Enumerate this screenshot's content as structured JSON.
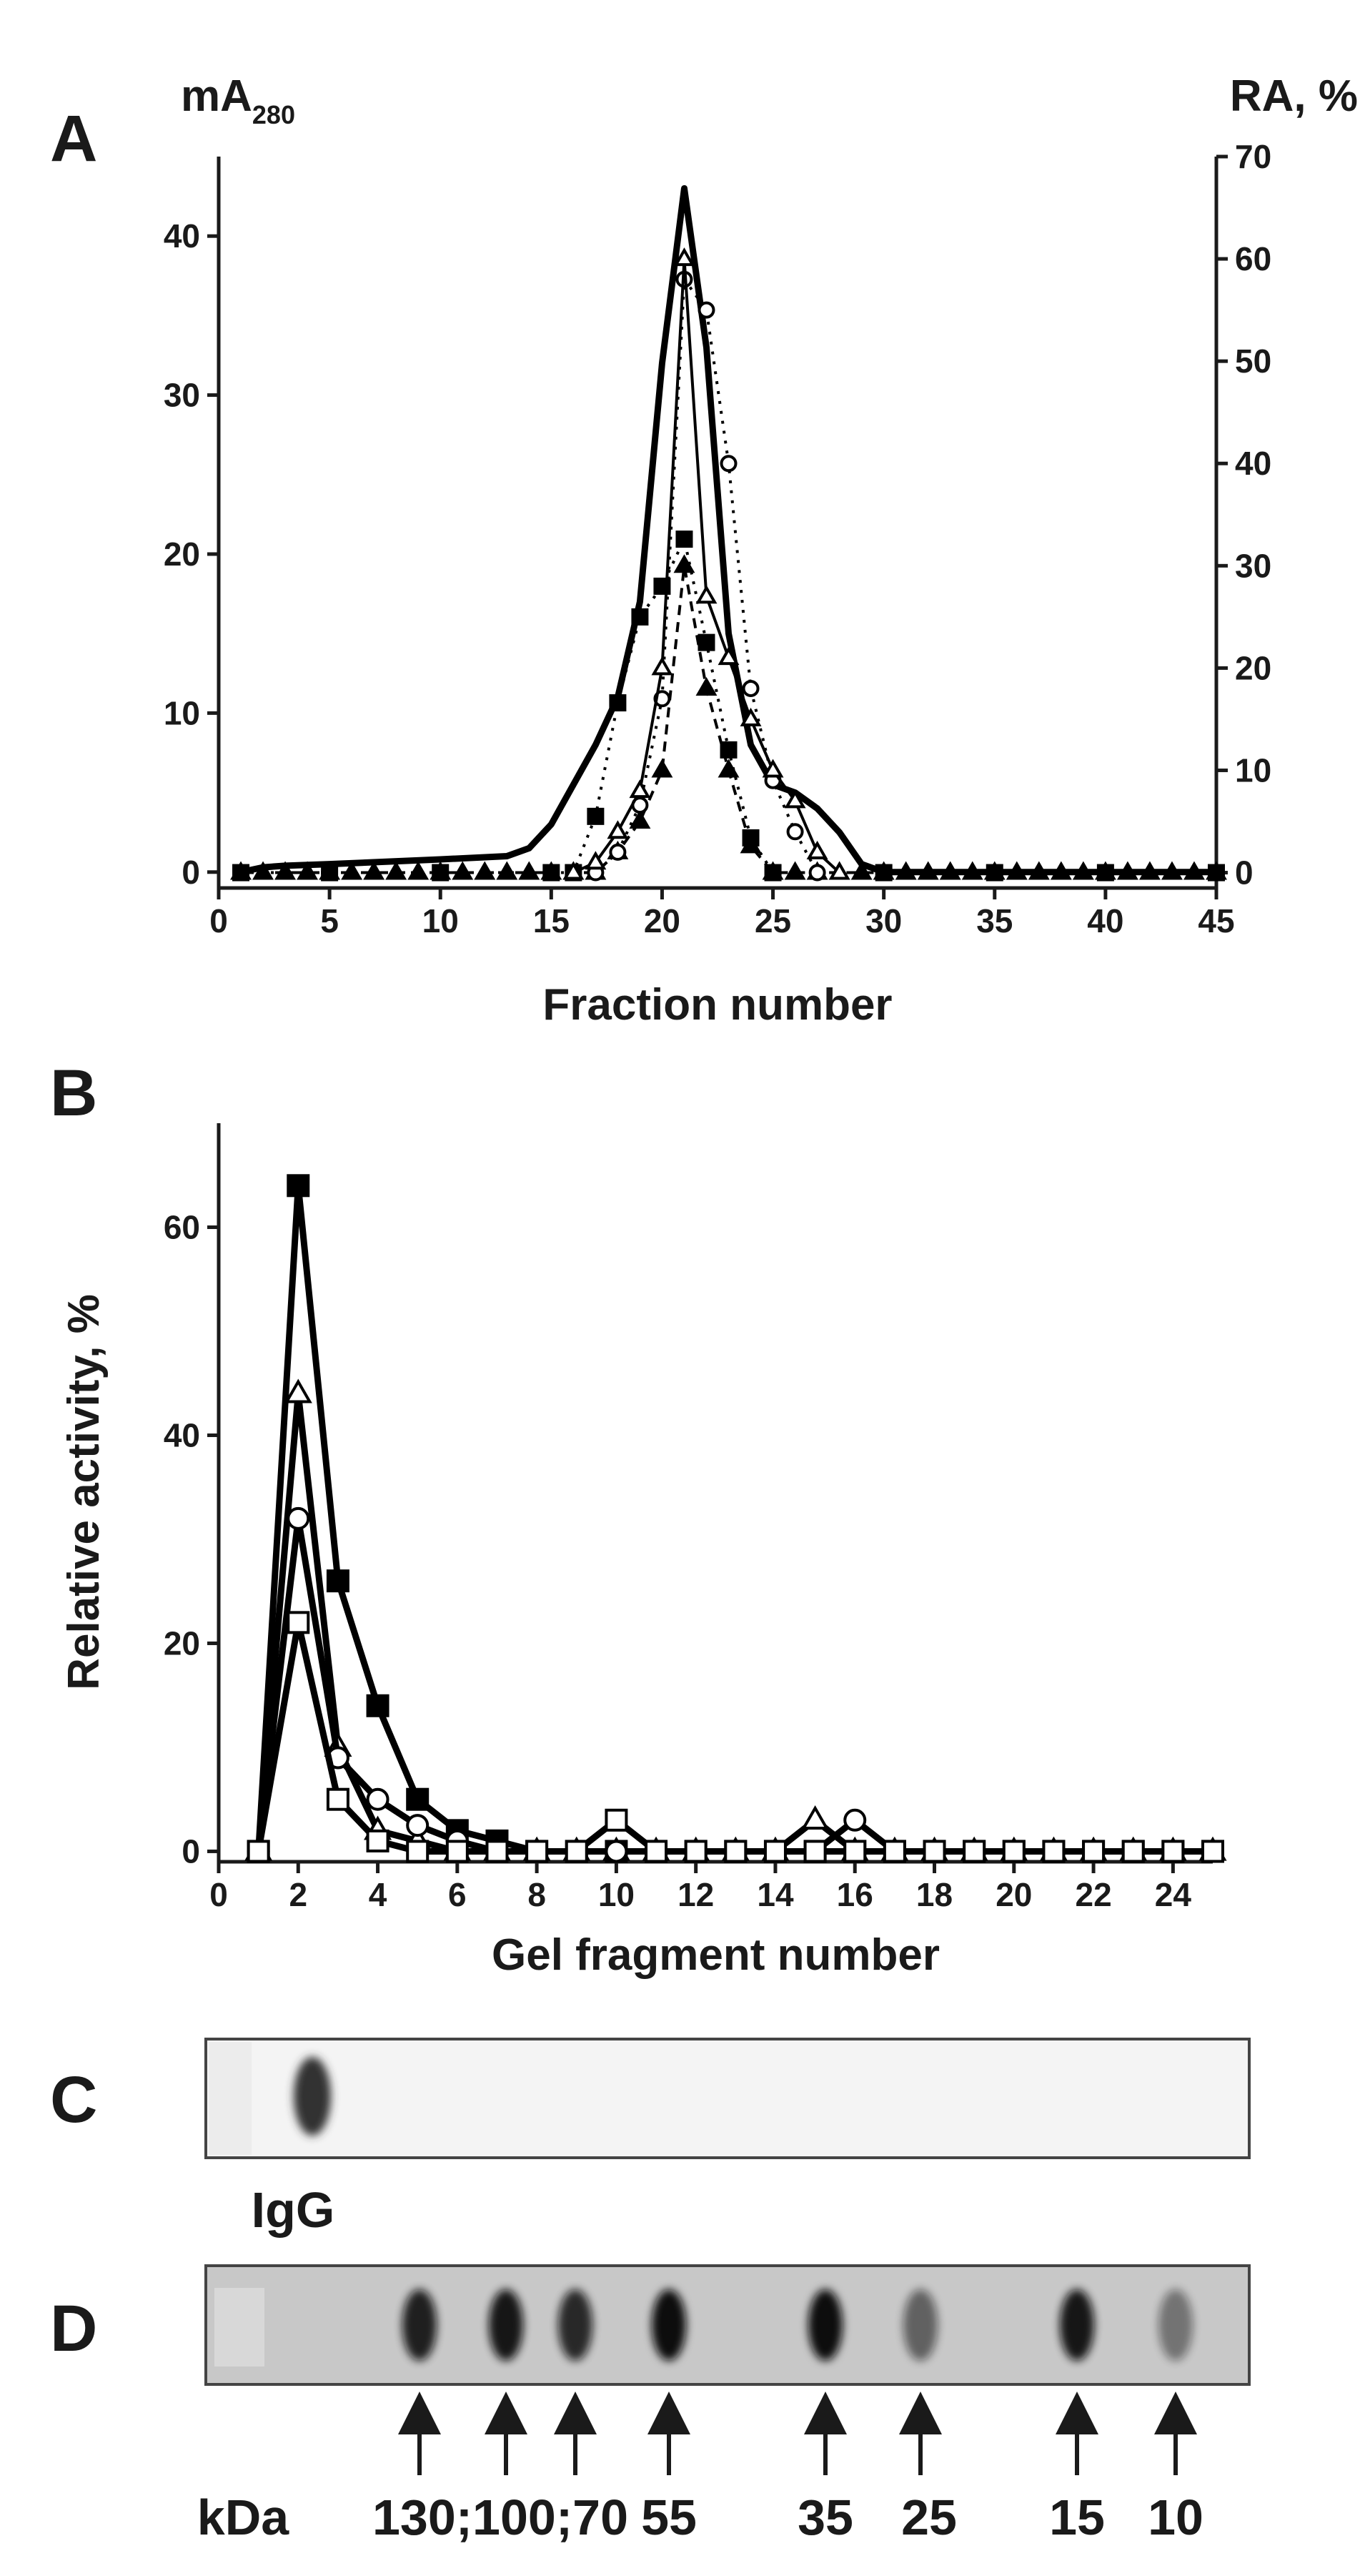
{
  "chart_data": [
    {
      "type": "line",
      "panel": "A",
      "xlabel": "Fraction number",
      "ylabel": "mA",
      "ylabel_subscript": "280",
      "y2label": "RA, %",
      "xlim": [
        0,
        45
      ],
      "xticks": [
        0,
        5,
        10,
        15,
        20,
        25,
        30,
        35,
        40,
        45
      ],
      "ylim": [
        -1,
        45
      ],
      "yticks": [
        0,
        10,
        20,
        30,
        40
      ],
      "y2lim": [
        -1.5,
        70
      ],
      "y2ticks": [
        0,
        10,
        20,
        30,
        40,
        50,
        60,
        70
      ],
      "series": [
        {
          "color": "#000000",
          "axis": "y",
          "line_style": "solid",
          "line_width": "thick",
          "marker": "none",
          "x": [
            1,
            2,
            3,
            5,
            10,
            13,
            14,
            15,
            16,
            17,
            18,
            19,
            20,
            21,
            22,
            23,
            24,
            25,
            26,
            27,
            28,
            29,
            30,
            35,
            40,
            45
          ],
          "values": [
            0,
            0.3,
            0.4,
            0.5,
            0.8,
            1,
            1.5,
            3,
            5.5,
            8,
            11,
            17,
            32,
            43,
            33,
            15,
            8,
            5.5,
            5,
            4,
            2.5,
            0.5,
            0,
            0,
            0,
            0
          ]
        },
        {
          "color": "#000000",
          "axis": "y2",
          "line_style": "dot",
          "line_width": "thin",
          "marker": "square-filled",
          "x": [
            1,
            5,
            10,
            15,
            16,
            17,
            18,
            19,
            20,
            21,
            22,
            23,
            24,
            25,
            30,
            35,
            40,
            45
          ],
          "values": [
            0,
            0,
            0,
            0,
            0,
            5.5,
            16.6,
            25,
            28,
            32.6,
            22.5,
            12,
            3.4,
            0,
            0,
            0,
            0,
            0
          ]
        },
        {
          "color": "#000000",
          "axis": "y2",
          "line_style": "dash",
          "line_width": "thin",
          "marker": "triangle-filled",
          "x": [
            1,
            2,
            3,
            4,
            5,
            6,
            7,
            8,
            9,
            10,
            11,
            12,
            13,
            14,
            15,
            16,
            17,
            18,
            19,
            20,
            21,
            22,
            23,
            24,
            25,
            26,
            27,
            28,
            29,
            30,
            31,
            32,
            33,
            34,
            35,
            36,
            37,
            38,
            39,
            40,
            41,
            42,
            43,
            44,
            45
          ],
          "values": [
            0,
            0,
            0,
            0,
            0,
            0,
            0,
            0,
            0,
            0,
            0,
            0,
            0,
            0,
            0,
            0,
            0,
            2,
            5,
            10,
            30,
            18,
            10,
            2.6,
            0,
            0,
            0,
            0,
            0,
            0,
            0,
            0,
            0,
            0,
            0,
            0,
            0,
            0,
            0,
            0,
            0,
            0,
            0,
            0,
            0
          ]
        },
        {
          "color": "#000000",
          "axis": "y2",
          "line_style": "dot",
          "line_width": "thin",
          "marker": "circle-open",
          "x": [
            17,
            18,
            19,
            20,
            21,
            22,
            23,
            24,
            25,
            26,
            27
          ],
          "values": [
            0,
            2,
            6.6,
            17,
            58,
            55,
            40,
            18,
            9,
            4,
            0
          ]
        },
        {
          "color": "#000000",
          "axis": "y2",
          "line_style": "solid",
          "line_width": "thin",
          "marker": "triangle-open",
          "x": [
            16,
            17,
            18,
            19,
            20,
            21,
            22,
            23,
            24,
            25,
            26,
            27,
            28
          ],
          "values": [
            0,
            1,
            4,
            8,
            20,
            60,
            27,
            21,
            15,
            10,
            7,
            2,
            0
          ]
        }
      ]
    },
    {
      "type": "line",
      "panel": "B",
      "xlabel": "Gel fragment number",
      "ylabel": "Relative activity, %",
      "xlim": [
        0,
        25
      ],
      "xticks": [
        0,
        2,
        4,
        6,
        8,
        10,
        12,
        14,
        16,
        18,
        20,
        22,
        24
      ],
      "ylim": [
        -1,
        70
      ],
      "yticks": [
        0,
        20,
        40,
        60
      ],
      "series": [
        {
          "color": "#000000",
          "axis": "y",
          "line_style": "solid",
          "line_width": "thick",
          "marker": "square-filled",
          "x": [
            1,
            2,
            3,
            4,
            5,
            6,
            7,
            8,
            9,
            10,
            11,
            12,
            13,
            14,
            15,
            16,
            17,
            18,
            19,
            20,
            21,
            22,
            23,
            24,
            25
          ],
          "values": [
            0,
            64,
            26,
            14,
            5,
            2,
            1,
            0,
            0,
            0,
            0,
            0,
            0,
            0,
            0,
            0,
            0,
            0,
            0,
            0,
            0,
            0,
            0,
            0,
            0
          ]
        },
        {
          "color": "#000000",
          "axis": "y",
          "line_style": "solid",
          "line_width": "thick",
          "marker": "triangle-open",
          "x": [
            1,
            2,
            3,
            4,
            5,
            6,
            7,
            8,
            9,
            10,
            11,
            12,
            13,
            14,
            15,
            16,
            17,
            18,
            19,
            20,
            21,
            22,
            23,
            24,
            25
          ],
          "values": [
            0,
            44,
            10,
            2,
            1,
            0,
            0,
            0,
            0,
            0,
            0,
            0,
            0,
            0,
            3,
            0,
            0,
            0,
            0,
            0,
            0,
            0,
            0,
            0,
            0
          ]
        },
        {
          "color": "#000000",
          "axis": "y",
          "line_style": "solid",
          "line_width": "thick",
          "marker": "circle-open",
          "x": [
            1,
            2,
            3,
            4,
            5,
            6,
            7,
            8,
            9,
            10,
            11,
            12,
            13,
            14,
            15,
            16,
            17,
            18,
            19,
            20,
            21,
            22,
            23,
            24,
            25
          ],
          "values": [
            0,
            32,
            9,
            5,
            2.5,
            1,
            0,
            0,
            0,
            0,
            0,
            0,
            0,
            0,
            0,
            3,
            0,
            0,
            0,
            0,
            0,
            0,
            0,
            0,
            0
          ]
        },
        {
          "color": "#000000",
          "axis": "y",
          "line_style": "solid",
          "line_width": "thick",
          "marker": "square-open",
          "x": [
            1,
            2,
            3,
            4,
            5,
            6,
            7,
            8,
            9,
            10,
            11,
            12,
            13,
            14,
            15,
            16,
            17,
            18,
            19,
            20,
            21,
            22,
            23,
            24,
            25
          ],
          "values": [
            0,
            22,
            5,
            1,
            0,
            0,
            0,
            0,
            0,
            3,
            0,
            0,
            0,
            0,
            0,
            0,
            0,
            0,
            0,
            0,
            0,
            0,
            0,
            0,
            0
          ]
        }
      ]
    }
  ],
  "gels": {
    "c": {
      "panel": "C",
      "lane_label": "IgG"
    },
    "d": {
      "panel": "D",
      "unit": "kDa",
      "markers": [
        "130;100;70",
        "55",
        "35",
        "25",
        "15",
        "10"
      ]
    }
  }
}
